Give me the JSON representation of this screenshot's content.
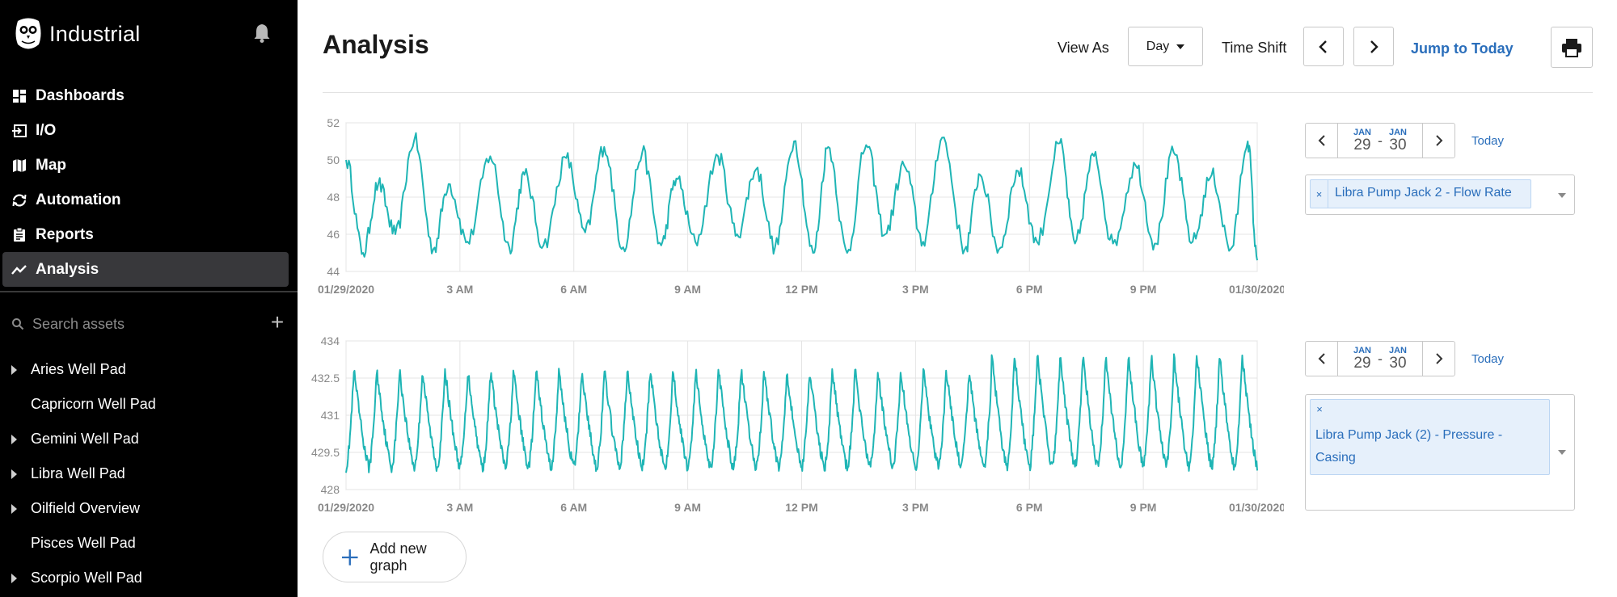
{
  "sidebar": {
    "app_title": "Industrial",
    "nav": [
      {
        "label": "Dashboards",
        "icon": "dashboard-icon"
      },
      {
        "label": "I/O",
        "icon": "io-icon"
      },
      {
        "label": "Map",
        "icon": "map-icon"
      },
      {
        "label": "Automation",
        "icon": "automation-icon"
      },
      {
        "label": "Reports",
        "icon": "reports-icon"
      },
      {
        "label": "Analysis",
        "icon": "analysis-icon",
        "active": true
      }
    ],
    "search_placeholder": "Search assets",
    "assets": [
      {
        "label": "Aries Well Pad",
        "expandable": true
      },
      {
        "label": "Capricorn Well Pad",
        "expandable": false
      },
      {
        "label": "Gemini Well Pad",
        "expandable": true
      },
      {
        "label": "Libra Well Pad",
        "expandable": true
      },
      {
        "label": "Oilfield Overview",
        "expandable": true
      },
      {
        "label": "Pisces Well Pad",
        "expandable": false
      },
      {
        "label": "Scorpio Well Pad",
        "expandable": true
      }
    ]
  },
  "header": {
    "title": "Analysis",
    "view_as_label": "View As",
    "view_as_value": "Day",
    "time_shift_label": "Time Shift",
    "jump_label": "Jump to Today"
  },
  "colors": {
    "series": "#1fb5b5",
    "accent": "#2a6ebb",
    "sidebar_bg": "#000000",
    "active_nav": "#38383b"
  },
  "panels": [
    {
      "range_start_month": "JAN",
      "range_start_day": "29",
      "range_end_month": "JAN",
      "range_end_day": "30",
      "today_label": "Today",
      "tag_label": "Libra Pump Jack 2 - Flow Rate",
      "tag_remove": "×"
    },
    {
      "range_start_month": "JAN",
      "range_start_day": "29",
      "range_end_month": "JAN",
      "range_end_day": "30",
      "today_label": "Today",
      "tag_label": "Libra Pump Jack (2) - Pressure - Casing",
      "tag_remove": "×"
    }
  ],
  "add_graph_label": "Add new graph",
  "chart_data": [
    {
      "type": "line",
      "series": [
        {
          "name": "Libra Pump Jack 2 - Flow Rate"
        }
      ],
      "x_tick_labels": [
        "01/29/2020",
        "3 AM",
        "6 AM",
        "9 AM",
        "12 PM",
        "3 PM",
        "6 PM",
        "9 PM",
        "01/30/2020"
      ],
      "y_tick_labels": [
        "52",
        "50",
        "48",
        "46",
        "44"
      ],
      "ylim": [
        44,
        52
      ],
      "xlim_hours": [
        0,
        24
      ],
      "grid": true,
      "peaks": [
        [
          0.0,
          50.0
        ],
        [
          0.45,
          45.0
        ],
        [
          0.85,
          48.7
        ],
        [
          1.3,
          46.0
        ],
        [
          1.8,
          51.1
        ],
        [
          2.3,
          45.2
        ],
        [
          2.7,
          48.7
        ],
        [
          3.2,
          45.6
        ],
        [
          3.8,
          50.2
        ],
        [
          4.3,
          45.3
        ],
        [
          4.7,
          49.2
        ],
        [
          5.2,
          45.4
        ],
        [
          5.8,
          50.1
        ],
        [
          6.3,
          46.1
        ],
        [
          6.8,
          50.7
        ],
        [
          7.3,
          45.3
        ],
        [
          7.8,
          50.4
        ],
        [
          8.3,
          45.4
        ],
        [
          8.7,
          49.0
        ],
        [
          9.2,
          45.6
        ],
        [
          9.8,
          50.2
        ],
        [
          10.3,
          46.0
        ],
        [
          10.8,
          49.5
        ],
        [
          11.3,
          45.3
        ],
        [
          11.8,
          51.0
        ],
        [
          12.3,
          45.0
        ],
        [
          12.7,
          50.7
        ],
        [
          13.2,
          45.0
        ],
        [
          13.7,
          50.8
        ],
        [
          14.2,
          46.0
        ],
        [
          14.7,
          49.7
        ],
        [
          15.2,
          45.6
        ],
        [
          15.7,
          51.2
        ],
        [
          16.3,
          45.2
        ],
        [
          16.7,
          49.2
        ],
        [
          17.2,
          45.2
        ],
        [
          17.7,
          49.4
        ],
        [
          18.2,
          45.6
        ],
        [
          18.8,
          50.9
        ],
        [
          19.2,
          45.5
        ],
        [
          19.7,
          50.2
        ],
        [
          20.2,
          45.5
        ],
        [
          20.8,
          49.7
        ],
        [
          21.3,
          45.5
        ],
        [
          21.8,
          50.4
        ],
        [
          22.3,
          45.6
        ],
        [
          22.8,
          49.2
        ],
        [
          23.3,
          45.2
        ],
        [
          23.75,
          51.0
        ],
        [
          24.0,
          44.6
        ]
      ]
    },
    {
      "type": "line",
      "series": [
        {
          "name": "Libra Pump Jack (2) - Pressure - Casing"
        }
      ],
      "x_tick_labels": [
        "01/29/2020",
        "3 AM",
        "6 AM",
        "9 AM",
        "12 PM",
        "3 PM",
        "6 PM",
        "9 PM",
        "01/30/2020"
      ],
      "y_tick_labels": [
        "434",
        "432.5",
        "431",
        "429.5",
        "428"
      ],
      "ylim": [
        428,
        434
      ],
      "xlim_hours": [
        0,
        24
      ],
      "grid": true,
      "cycle_hours": 0.6,
      "base_min": 428.9,
      "base_max": 432.8,
      "late_start_hours": 17.0,
      "late_max": 433.4
    }
  ]
}
